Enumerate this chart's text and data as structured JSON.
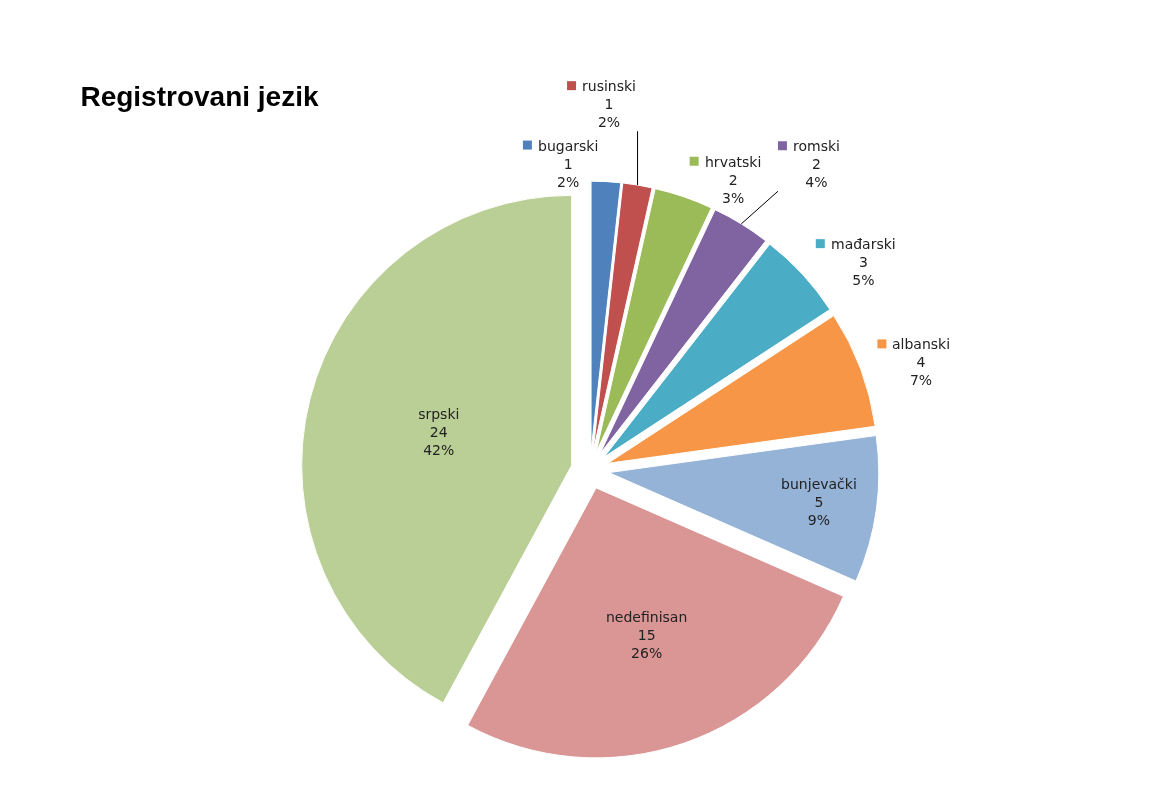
{
  "chart_data": {
    "type": "pie",
    "title": "Registrovani jezik",
    "categories": [
      "bugarski",
      "rusinski",
      "hrvatski",
      "romski",
      "mađarski",
      "albanski",
      "bunjevački",
      "nedefinisan",
      "srpski"
    ],
    "values": [
      1,
      1,
      2,
      2,
      3,
      4,
      5,
      15,
      24
    ],
    "value_labels": [
      "1\n2%",
      "1\n2%",
      "2\n3%",
      "2\n4%",
      "3\n5%",
      "4\n7%",
      "5\n9%",
      "15\n26%",
      "24\n42%"
    ],
    "colors": [
      "#4f81bd",
      "#c0504d",
      "#9bbb59",
      "#8064a2",
      "#4bacc6",
      "#f79646",
      "#95b3d7",
      "#d99694",
      "#bacf96"
    ],
    "legend": "top right"
  }
}
